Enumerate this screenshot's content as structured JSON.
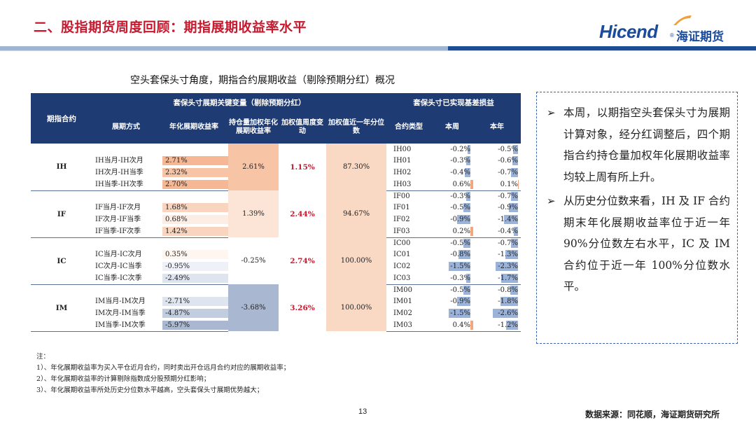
{
  "header": {
    "title": "二、股指期货周度回顾：期指展期收益率水平"
  },
  "logo": {
    "en": "Hicend",
    "reg": "®",
    "cn": "海证期货"
  },
  "table_caption": "空头套保头寸角度，期指合约展期收益（剔除预期分红）概况",
  "table": {
    "headers": {
      "contract": "期指合约",
      "group1": "套保头寸展期关键变量（剔除预期分红）",
      "group2": "套保头寸已实现基差损益",
      "spread": "展期方式",
      "annual_rate": "年化展期收益率",
      "oi_weighted": "持仓量加权年化展期收益率",
      "weekly_change": "加权值周度变动",
      "percentile": "加权值近一年分位数",
      "contract_type": "合约类型",
      "this_week": "本周",
      "this_year": "本年"
    },
    "groups": [
      {
        "contract": "IH",
        "spreads": [
          {
            "name": "IH当月-IH次月",
            "rate": "2.71%",
            "rate_value": 2.71
          },
          {
            "name": "IH次月-IH当季",
            "rate": "2.32%",
            "rate_value": 2.32
          },
          {
            "name": "IH当季-IH次季",
            "rate": "2.70%",
            "rate_value": 2.7
          }
        ],
        "oi_weighted": "2.61%",
        "oi_value": 2.61,
        "weekly_change": "1.15%",
        "percentile": "87.30%",
        "contracts": [
          {
            "type": "IH00",
            "week": "-0.2%",
            "week_value": -0.2,
            "year": "-0.5%",
            "year_value": -0.5
          },
          {
            "type": "IH01",
            "week": "-0.3%",
            "week_value": -0.3,
            "year": "-0.6%",
            "year_value": -0.6
          },
          {
            "type": "IH02",
            "week": "-0.4%",
            "week_value": -0.4,
            "year": "-0.7%",
            "year_value": -0.7
          },
          {
            "type": "IH03",
            "week": "0.6%",
            "week_value": 0.6,
            "year": "0.1%",
            "year_value": 0.1
          }
        ]
      },
      {
        "contract": "IF",
        "spreads": [
          {
            "name": "IF当月-IF次月",
            "rate": "1.68%",
            "rate_value": 1.68
          },
          {
            "name": "IF次月-IF当季",
            "rate": "0.68%",
            "rate_value": 0.68
          },
          {
            "name": "IF当季-IF次季",
            "rate": "1.42%",
            "rate_value": 1.42
          }
        ],
        "oi_weighted": "1.39%",
        "oi_value": 1.39,
        "weekly_change": "2.44%",
        "percentile": "94.67%",
        "contracts": [
          {
            "type": "IF00",
            "week": "-0.3%",
            "week_value": -0.3,
            "year": "-0.7%",
            "year_value": -0.7
          },
          {
            "type": "IF01",
            "week": "-0.5%",
            "week_value": -0.5,
            "year": "-0.9%",
            "year_value": -0.9
          },
          {
            "type": "IF02",
            "week": "-0.9%",
            "week_value": -0.9,
            "year": "-1.4%",
            "year_value": -1.4
          },
          {
            "type": "IF03",
            "week": "0.2%",
            "week_value": 0.2,
            "year": "-0.4%",
            "year_value": -0.4
          }
        ]
      },
      {
        "contract": "IC",
        "spreads": [
          {
            "name": "IC当月-IC次月",
            "rate": "0.35%",
            "rate_value": 0.35
          },
          {
            "name": "IC次月-IC当季",
            "rate": "-0.95%",
            "rate_value": -0.95
          },
          {
            "name": "IC当季-IC次季",
            "rate": "-2.49%",
            "rate_value": -2.49
          }
        ],
        "oi_weighted": "-0.25%",
        "oi_value": -0.25,
        "weekly_change": "2.74%",
        "percentile": "100.00%",
        "contracts": [
          {
            "type": "IC00",
            "week": "-0.5%",
            "week_value": -0.5,
            "year": "-0.7%",
            "year_value": -0.7
          },
          {
            "type": "IC01",
            "week": "-0.8%",
            "week_value": -0.8,
            "year": "-1.3%",
            "year_value": -1.3
          },
          {
            "type": "IC02",
            "week": "-1.5%",
            "week_value": -1.5,
            "year": "-2.3%",
            "year_value": -2.3
          },
          {
            "type": "IC03",
            "week": "-0.3%",
            "week_value": -0.3,
            "year": "-1.7%",
            "year_value": -1.7
          }
        ]
      },
      {
        "contract": "IM",
        "spreads": [
          {
            "name": "IM当月-IM次月",
            "rate": "-2.71%",
            "rate_value": -2.71
          },
          {
            "name": "IM次月-IM当季",
            "rate": "-4.87%",
            "rate_value": -4.87
          },
          {
            "name": "IM当季-IM次季",
            "rate": "-5.97%",
            "rate_value": -5.97
          }
        ],
        "oi_weighted": "-3.68%",
        "oi_value": -3.68,
        "weekly_change": "3.26%",
        "percentile": "100.00%",
        "contracts": [
          {
            "type": "IM00",
            "week": "-0.5%",
            "week_value": -0.5,
            "year": "-0.8%",
            "year_value": -0.8
          },
          {
            "type": "IM01",
            "week": "-0.9%",
            "week_value": -0.9,
            "year": "-1.8%",
            "year_value": -1.8
          },
          {
            "type": "IM02",
            "week": "-1.5%",
            "week_value": -1.5,
            "year": "-2.6%",
            "year_value": -2.6
          },
          {
            "type": "IM03",
            "week": "0.4%",
            "week_value": 0.4,
            "year": "-1.2%",
            "year_value": -1.2
          }
        ]
      }
    ]
  },
  "notes": [
    "注：",
    "1）、年化展期收益率为买入平仓近月合约，同时卖出开仓远月合约对应的展期收益率；",
    "2）、年化展期收益率的计算剔除指数成分股预期分红影响；",
    "3）、年化展期收益率所处历史分位数水平越高，空头套保头寸展期优势越大；"
  ],
  "sidebox": {
    "bullets": [
      "本周，以期指空头套保头寸为展期计算对象，经分红调整后，四个期指合约持仓量加权年化展期收益率均较上周有所上升。",
      "从历史分位数来看，IH 及 IF 合约期末年化展期收益率位于近一年 90%分位数左右水平，IC 及 IM 合约位于近一年 100%分位数水平。"
    ]
  },
  "page_number": "13",
  "source": "数据来源：同花顺，海证期货研究所",
  "colors": {
    "title_red": "#c8192e",
    "header_navy": "#1f3b73",
    "positive_fill": "#f6c6a8",
    "negative_fill": "#9fb0cc",
    "bar_blue": "#9bb3d8",
    "bar_orange": "#f4a77c"
  }
}
